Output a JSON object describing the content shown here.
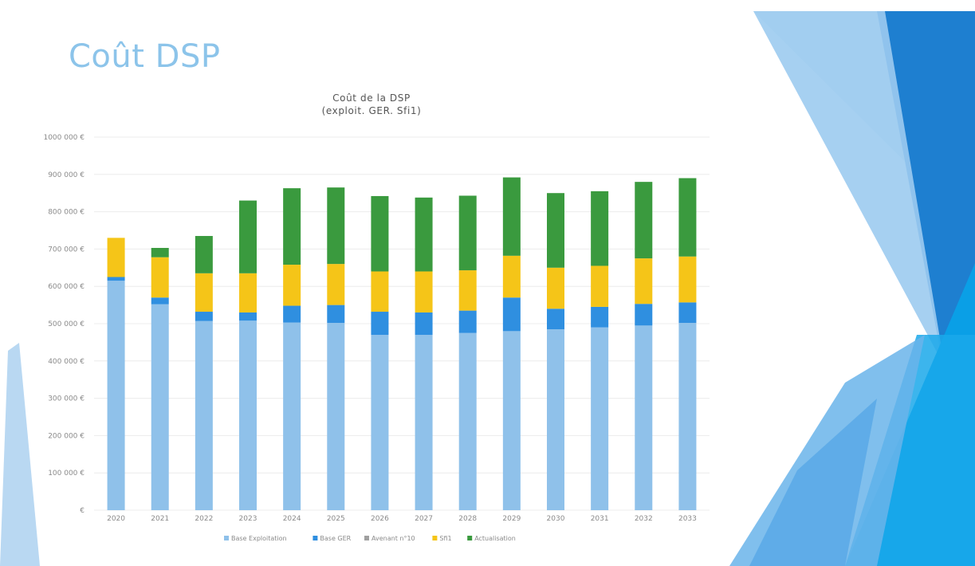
{
  "slide": {
    "title": "Coût DSP"
  },
  "chart_data": {
    "type": "bar",
    "stacked": true,
    "title": "Coût de la DSP",
    "subtitle": "(exploit. GER. Sfi1)",
    "categories": [
      "2020",
      "2021",
      "2022",
      "2023",
      "2024",
      "2025",
      "2026",
      "2027",
      "2028",
      "2029",
      "2030",
      "2031",
      "2032",
      "2033"
    ],
    "y_tick_labels": [
      "€",
      "100 000 €",
      "200 000 €",
      "300 000 €",
      "400 000 €",
      "500 000 €",
      "600 000 €",
      "700 000 €",
      "800 000 €",
      "900 000 €",
      "1000 000 €"
    ],
    "ylim": [
      0,
      1000000
    ],
    "legend_position": "bottom",
    "series": [
      {
        "name": "Base Exploitation",
        "color": "#8fc1ea",
        "values": [
          615000,
          552000,
          507000,
          508000,
          503000,
          502000,
          470000,
          470000,
          475000,
          480000,
          485000,
          490000,
          495000,
          502000
        ]
      },
      {
        "name": "Base GER",
        "color": "#2f8fe0",
        "values": [
          10000,
          18000,
          25000,
          22000,
          45000,
          48000,
          62000,
          60000,
          60000,
          90000,
          55000,
          55000,
          58000,
          55000
        ]
      },
      {
        "name": "Avenant n°10",
        "color": "#a0a0a0",
        "values": [
          0,
          0,
          0,
          0,
          0,
          0,
          0,
          0,
          0,
          0,
          0,
          0,
          0,
          0
        ]
      },
      {
        "name": "Sfi1",
        "color": "#f5c518",
        "values": [
          105000,
          108000,
          103000,
          105000,
          110000,
          110000,
          108000,
          110000,
          108000,
          112000,
          110000,
          110000,
          122000,
          123000
        ]
      },
      {
        "name": "Actualisation",
        "color": "#3a9a3e",
        "values": [
          0,
          25000,
          100000,
          195000,
          205000,
          205000,
          202000,
          198000,
          200000,
          210000,
          200000,
          200000,
          205000,
          210000
        ]
      }
    ]
  }
}
